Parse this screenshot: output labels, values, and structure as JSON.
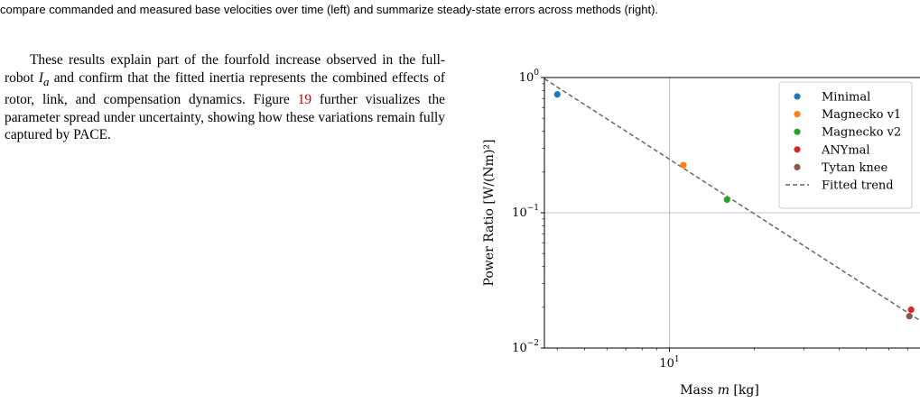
{
  "page": {
    "caption_tail": "compare commanded and measured base velocities over time (left) and summarize steady-state errors across methods (right).",
    "paragraph": {
      "part1": "These results explain part of the fourfold increase observed in the full-robot ",
      "symbol": "I",
      "symbol_sub": "a",
      "part2": " and confirm that the fitted inertia represents the combined effects of rotor, link, and compensation dynamics. Figure ",
      "figure_ref": "19",
      "part3": " further visualizes the parameter spread under uncertainty, showing how these variations remain fully captured by PACE."
    }
  },
  "chart_data": {
    "type": "scatter",
    "xlabel_text": "Mass ",
    "xlabel_symbol": "m",
    "xlabel_unit": " [kg]",
    "ylabel": "Power Ratio [W/(Nm)²]",
    "xscale": "log",
    "yscale": "log",
    "xlim": [
      3.6,
      78
    ],
    "ylim": [
      0.01,
      1.0
    ],
    "grid": true,
    "x_ticks": [
      {
        "value": 10,
        "base": "10",
        "exp": "1"
      }
    ],
    "y_ticks": [
      {
        "value": 1.0,
        "base": "10",
        "exp": "0"
      },
      {
        "value": 0.1,
        "base": "10",
        "exp": "−1"
      },
      {
        "value": 0.01,
        "base": "10",
        "exp": "−2"
      }
    ],
    "legend_position": "top-right",
    "series": [
      {
        "name": "Minimal",
        "color": "#1f77b4",
        "x": 4.0,
        "y": 0.75
      },
      {
        "name": "Magnecko v1",
        "color": "#ff7f0e",
        "x": 11.2,
        "y": 0.225
      },
      {
        "name": "Magnecko v2",
        "color": "#2ca02c",
        "x": 16.0,
        "y": 0.125
      },
      {
        "name": "ANYmal",
        "color": "#d62728",
        "x": 72.0,
        "y": 0.0192
      },
      {
        "name": "Tytan knee",
        "color": "#8c564b",
        "x": 71.0,
        "y": 0.0172
      }
    ],
    "trend": {
      "name": "Fitted trend",
      "color": "#666666",
      "x": [
        3.6,
        78
      ],
      "y": [
        0.98,
        0.0158
      ]
    }
  }
}
